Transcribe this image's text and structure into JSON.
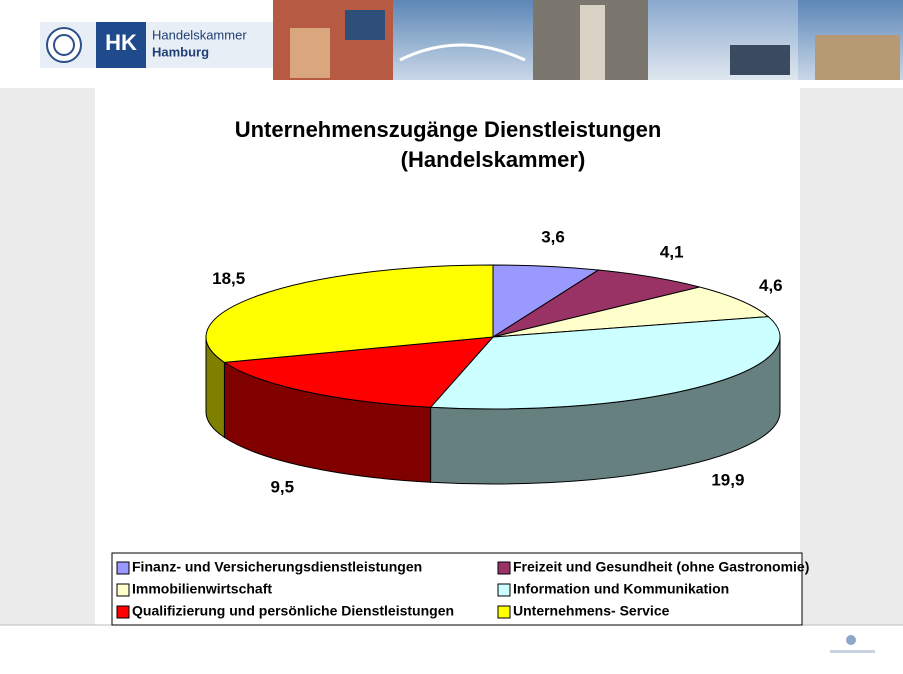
{
  "header": {
    "logo": "HK",
    "name_line1": "Handelskammer",
    "name_line2": "Hamburg"
  },
  "chart_data": {
    "type": "pie3d",
    "title": "Unternehmenszugänge Dienstleistungen",
    "subtitle": "(Handelskammer)",
    "categories": [
      "Finanz- und Versicherungsdienstleistungen",
      "Freizeit und Gesundheit (ohne Gastronomie)",
      "Immobilienwirtschaft",
      "Information und Kommunikation",
      "Qualifizierung und persönliche Dienstleistungen",
      "Unternehmens- Service"
    ],
    "values": [
      3.6,
      4.1,
      4.6,
      19.9,
      9.5,
      18.5
    ],
    "value_labels": [
      "3,6",
      "4,1",
      "4,6",
      "19,9",
      "9,5",
      "18,5"
    ],
    "colors": [
      "#9999ff",
      "#993366",
      "#ffffcc",
      "#ccffff",
      "#ff0000",
      "#ffff00"
    ]
  }
}
